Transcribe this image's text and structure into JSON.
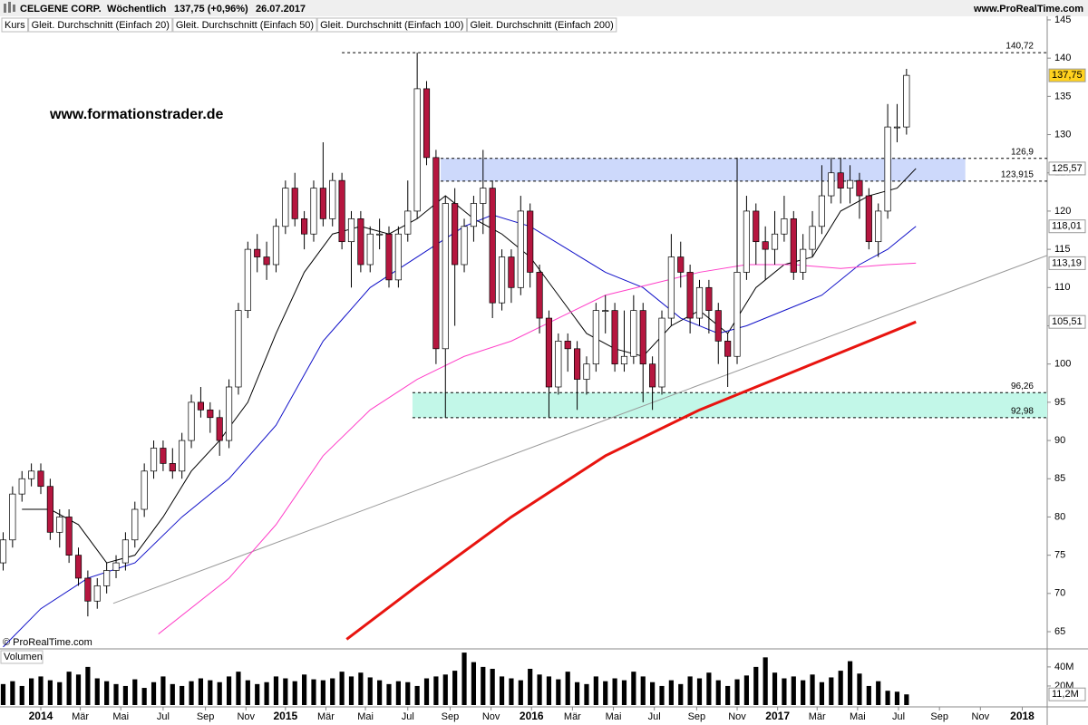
{
  "header": {
    "title": "CELGENE CORP.",
    "period": "Wöchentlich",
    "quote": "137,75 (+0,96%)",
    "date": "26.07.2017",
    "site": "www.ProRealTime.com"
  },
  "watermark": "www.formationstrader.de",
  "copyright": "© ProRealTime.com",
  "chart_data": [
    {
      "type": "candlestick",
      "price_label": "Kurs",
      "up_color": "#ffffff",
      "down_color": "#b5163f",
      "xlim": [
        -8.67,
        213.9
      ],
      "ylim": [
        62.87,
        145.47
      ],
      "yticks": [
        65,
        70,
        75,
        80,
        85,
        90,
        95,
        100,
        105,
        110,
        115,
        120,
        125,
        130,
        135,
        140,
        145
      ],
      "x": [
        -8,
        -6,
        -4,
        -2,
        0,
        2,
        4,
        6,
        8,
        10,
        12,
        14,
        16,
        18,
        20,
        22,
        24,
        26,
        28,
        30,
        32,
        34,
        36,
        38,
        40,
        42,
        44,
        46,
        48,
        50,
        52,
        54,
        56,
        58,
        60,
        62,
        64,
        66,
        68,
        70,
        72,
        74,
        76,
        78,
        80,
        82,
        84,
        86,
        88,
        90,
        92,
        94,
        96,
        98,
        100,
        102,
        104,
        106,
        108,
        110,
        112,
        114,
        116,
        118,
        120,
        122,
        124,
        126,
        128,
        130,
        132,
        134,
        136,
        138,
        140,
        142,
        144,
        146,
        148,
        150,
        152,
        154,
        156,
        158,
        160,
        162,
        164,
        166,
        168,
        170,
        172,
        174,
        176,
        178,
        180,
        182,
        184
      ],
      "open": [
        74,
        77,
        83,
        85,
        86,
        84,
        78,
        80,
        75,
        72,
        69,
        71,
        73,
        74,
        77,
        81,
        86,
        89,
        87,
        86,
        90,
        95,
        94,
        93,
        90,
        97,
        107,
        115,
        114,
        113,
        118,
        123,
        119,
        117,
        123,
        119,
        124,
        116,
        119,
        113,
        117,
        117,
        111,
        117,
        120,
        136,
        127,
        102,
        121,
        113,
        118,
        121,
        123,
        108,
        114,
        110,
        120,
        112,
        106,
        97,
        103,
        102,
        98,
        100,
        107,
        107,
        100,
        101,
        107,
        100,
        97,
        106,
        114,
        112,
        106,
        110,
        107,
        103,
        101,
        112,
        120,
        116,
        115,
        117,
        119,
        112,
        115,
        118,
        122,
        125,
        123,
        124,
        122,
        116,
        120,
        131,
        131
      ],
      "high": [
        78,
        84,
        86,
        87,
        87,
        85,
        81,
        81,
        76,
        73,
        72,
        74,
        75,
        78,
        82,
        87,
        90,
        90,
        89,
        91,
        96,
        97,
        95,
        94,
        98,
        108,
        116,
        117,
        116,
        119,
        124,
        125,
        120,
        124,
        129,
        125,
        125,
        120,
        120,
        118,
        119,
        118,
        118,
        124,
        140.72,
        137,
        128,
        122,
        123,
        119,
        122,
        128,
        124,
        115,
        115,
        122,
        121,
        113,
        107,
        104,
        104,
        103,
        101,
        108,
        109,
        108,
        107,
        109,
        108,
        101,
        107,
        117,
        116,
        113,
        111,
        111,
        108,
        104,
        127,
        122,
        121,
        118,
        120,
        122,
        120,
        117,
        120,
        126,
        127,
        127,
        126,
        125,
        123,
        121,
        134,
        134,
        138.6
      ],
      "low": [
        73,
        76,
        82,
        84,
        83,
        77,
        76,
        74,
        71,
        67,
        68,
        70,
        72,
        73,
        76,
        80,
        85,
        86,
        85,
        85,
        89,
        93,
        91,
        88,
        89,
        96,
        106,
        112,
        111,
        112,
        117,
        118,
        115,
        116,
        118,
        118,
        115,
        110,
        112,
        112,
        115,
        110,
        110,
        116,
        119,
        126,
        100,
        92.98,
        105,
        112,
        116,
        117,
        106,
        107,
        108,
        109,
        110,
        104,
        93,
        96,
        99,
        94,
        96,
        99,
        104,
        99,
        99,
        100,
        95,
        94,
        96,
        105,
        110,
        104,
        105,
        104,
        100,
        97,
        100,
        111,
        113,
        111,
        113,
        116,
        111,
        111,
        114,
        117,
        121,
        121,
        121,
        119,
        115,
        114,
        119,
        129,
        130
      ],
      "close": [
        77,
        83,
        85,
        86,
        84,
        78,
        80,
        75,
        72,
        69,
        71,
        73,
        74,
        77,
        81,
        86,
        89,
        87,
        86,
        90,
        95,
        94,
        93,
        90,
        97,
        107,
        115,
        114,
        113,
        118,
        123,
        119,
        117,
        123,
        119,
        124,
        116,
        119,
        113,
        117,
        117,
        111,
        117,
        120,
        136,
        127,
        102,
        121,
        113,
        118,
        121,
        123,
        108,
        114,
        110,
        120,
        112,
        106,
        97,
        103,
        102,
        98,
        100,
        107,
        107,
        100,
        101,
        107,
        100,
        97,
        106,
        114,
        112,
        106,
        110,
        107,
        103,
        101,
        112,
        120,
        116,
        115,
        117,
        119,
        112,
        115,
        118,
        122,
        125,
        123,
        124,
        122,
        116,
        120,
        131,
        131,
        137.75
      ],
      "series": [
        {
          "name": "Gleit. Durchschnitt (Einfach 20)",
          "color": "#000000",
          "width": 1,
          "x": [
            -4,
            2,
            8,
            14,
            20,
            26,
            32,
            38,
            44,
            50,
            56,
            62,
            68,
            74,
            80,
            86,
            92,
            98,
            104,
            110,
            116,
            122,
            128,
            134,
            140,
            146,
            152,
            158,
            164,
            170,
            176,
            182,
            186
          ],
          "values": [
            81,
            81,
            79,
            74,
            75,
            80,
            86,
            90,
            95,
            104,
            112,
            117,
            118,
            117,
            119,
            122,
            119,
            117,
            114,
            109,
            104,
            102,
            101,
            105,
            107,
            104,
            110,
            113,
            114,
            120,
            122,
            123,
            125.57
          ]
        },
        {
          "name": "Gleit. Durchschnitt (Einfach 50)",
          "color": "#1010c8",
          "width": 1,
          "x": [
            -8,
            0,
            10,
            20,
            30,
            40,
            50,
            60,
            70,
            80,
            90,
            96,
            104,
            112,
            120,
            128,
            136,
            144,
            150,
            158,
            166,
            174,
            180,
            186
          ],
          "values": [
            63,
            68,
            72,
            74,
            80,
            85,
            92,
            103,
            110,
            114,
            118,
            119.5,
            118,
            115,
            112,
            110,
            106,
            104,
            105,
            107,
            109,
            113,
            115,
            118.01
          ]
        },
        {
          "name": "Gleit. Durchschnitt (Einfach 100)",
          "color": "#ff3fc8",
          "width": 1,
          "x": [
            25,
            40,
            50,
            60,
            70,
            80,
            90,
            100,
            110,
            120,
            130,
            140,
            150,
            160,
            170,
            180,
            186
          ],
          "values": [
            64.7,
            72,
            79,
            88,
            94,
            98,
            101,
            103,
            106,
            109,
            110.5,
            112,
            113,
            113,
            112.5,
            113,
            113.19
          ]
        },
        {
          "name": "Gleit. Durchschnitt (Einfach 200)",
          "color": "#e8140f",
          "width": 3,
          "x": [
            65,
            80,
            100,
            120,
            140,
            160,
            180,
            186
          ],
          "values": [
            64,
            71,
            80,
            88,
            94,
            99,
            104,
            105.51
          ]
        }
      ],
      "trendline": {
        "color": "#999999",
        "x": [
          15.4,
          213.9
        ],
        "values": [
          68.7,
          114.2
        ]
      },
      "zones": [
        {
          "color": "#cdd9fb",
          "from": 85,
          "to": 196.5,
          "low": 123.915,
          "high": 126.9
        },
        {
          "color": "#c2f7e8",
          "from": 79,
          "to": 213.9,
          "low": 92.98,
          "high": 96.26
        }
      ],
      "levels": [
        {
          "value": 140.72,
          "label": "140,72",
          "from": 64
        },
        {
          "value": 126.9,
          "label": "126,9",
          "from": 85
        },
        {
          "value": 123.915,
          "label": "123,915",
          "from": 85
        },
        {
          "value": 96.26,
          "label": "96,26",
          "from": 79
        },
        {
          "value": 92.98,
          "label": "92,98",
          "from": 79
        }
      ],
      "markers": [
        {
          "value": 137.75,
          "label": "137,75",
          "color": "#000000",
          "fill": "#ffd21e"
        },
        {
          "value": 125.57,
          "label": "125,57",
          "color": "#000000",
          "fill": "#ffffff"
        },
        {
          "value": 118.01,
          "label": "118,01",
          "color": "#1010c8",
          "fill": "#ffffff"
        },
        {
          "value": 113.19,
          "label": "113,19",
          "color": "#ff3fc8",
          "fill": "#ffffff"
        },
        {
          "value": 105.51,
          "label": "105,51",
          "color": "#e8140f",
          "fill": "#ffffff"
        }
      ]
    },
    {
      "type": "bar",
      "title": "Volumen",
      "color": "#000000",
      "xlim": [
        -8.67,
        213.9
      ],
      "ylim": [
        0,
        57
      ],
      "yticks": [
        {
          "value": 20,
          "label": "20M"
        },
        {
          "value": 40,
          "label": "40M"
        }
      ],
      "marker": {
        "value": 11.2,
        "label": "11,2M"
      },
      "x": [
        -8,
        -6,
        -4,
        -2,
        0,
        2,
        4,
        6,
        8,
        10,
        12,
        14,
        16,
        18,
        20,
        22,
        24,
        26,
        28,
        30,
        32,
        34,
        36,
        38,
        40,
        42,
        44,
        46,
        48,
        50,
        52,
        54,
        56,
        58,
        60,
        62,
        64,
        66,
        68,
        70,
        72,
        74,
        76,
        78,
        80,
        82,
        84,
        86,
        88,
        90,
        92,
        94,
        96,
        98,
        100,
        102,
        104,
        106,
        108,
        110,
        112,
        114,
        116,
        118,
        120,
        122,
        124,
        126,
        128,
        130,
        132,
        134,
        136,
        138,
        140,
        142,
        144,
        146,
        148,
        150,
        152,
        154,
        156,
        158,
        160,
        162,
        164,
        166,
        168,
        170,
        172,
        174,
        176,
        178,
        180,
        182,
        184
      ],
      "values": [
        22,
        25,
        20,
        28,
        30,
        26,
        24,
        35,
        32,
        40,
        28,
        25,
        22,
        20,
        27,
        18,
        24,
        30,
        22,
        20,
        25,
        28,
        26,
        24,
        30,
        35,
        26,
        22,
        24,
        30,
        28,
        25,
        32,
        27,
        26,
        28,
        35,
        30,
        34,
        29,
        26,
        22,
        25,
        24,
        20,
        28,
        30,
        32,
        36,
        55,
        45,
        40,
        38,
        30,
        28,
        26,
        38,
        32,
        30,
        27,
        35,
        24,
        22,
        30,
        25,
        28,
        26,
        35,
        30,
        24,
        20,
        26,
        22,
        30,
        28,
        34,
        26,
        20,
        27,
        31,
        40,
        50,
        34,
        28,
        30,
        26,
        32,
        24,
        29,
        36,
        46,
        33,
        20,
        25,
        15,
        14,
        11.2
      ],
      "xticks": [
        {
          "value": 0,
          "label": "2014"
        },
        {
          "value": 8.4,
          "label": "Mär"
        },
        {
          "value": 17,
          "label": "Mai"
        },
        {
          "value": 26,
          "label": "Jul"
        },
        {
          "value": 35,
          "label": "Sep"
        },
        {
          "value": 43.6,
          "label": "Nov"
        },
        {
          "value": 52,
          "label": "2015"
        },
        {
          "value": 60.6,
          "label": "Mär"
        },
        {
          "value": 69,
          "label": "Mai"
        },
        {
          "value": 78,
          "label": "Jul"
        },
        {
          "value": 87,
          "label": "Sep"
        },
        {
          "value": 95.7,
          "label": "Nov"
        },
        {
          "value": 104.3,
          "label": "2016"
        },
        {
          "value": 113,
          "label": "Mär"
        },
        {
          "value": 121.7,
          "label": "Mai"
        },
        {
          "value": 130.4,
          "label": "Jul"
        },
        {
          "value": 139.4,
          "label": "Sep"
        },
        {
          "value": 148,
          "label": "Nov"
        },
        {
          "value": 156.6,
          "label": "2017"
        },
        {
          "value": 165,
          "label": "Mär"
        },
        {
          "value": 173.6,
          "label": "Mai"
        },
        {
          "value": 182.3,
          "label": "Jul"
        },
        {
          "value": 191,
          "label": "Sep"
        },
        {
          "value": 199.7,
          "label": "Nov"
        },
        {
          "value": 208.6,
          "label": "2018"
        }
      ]
    }
  ]
}
